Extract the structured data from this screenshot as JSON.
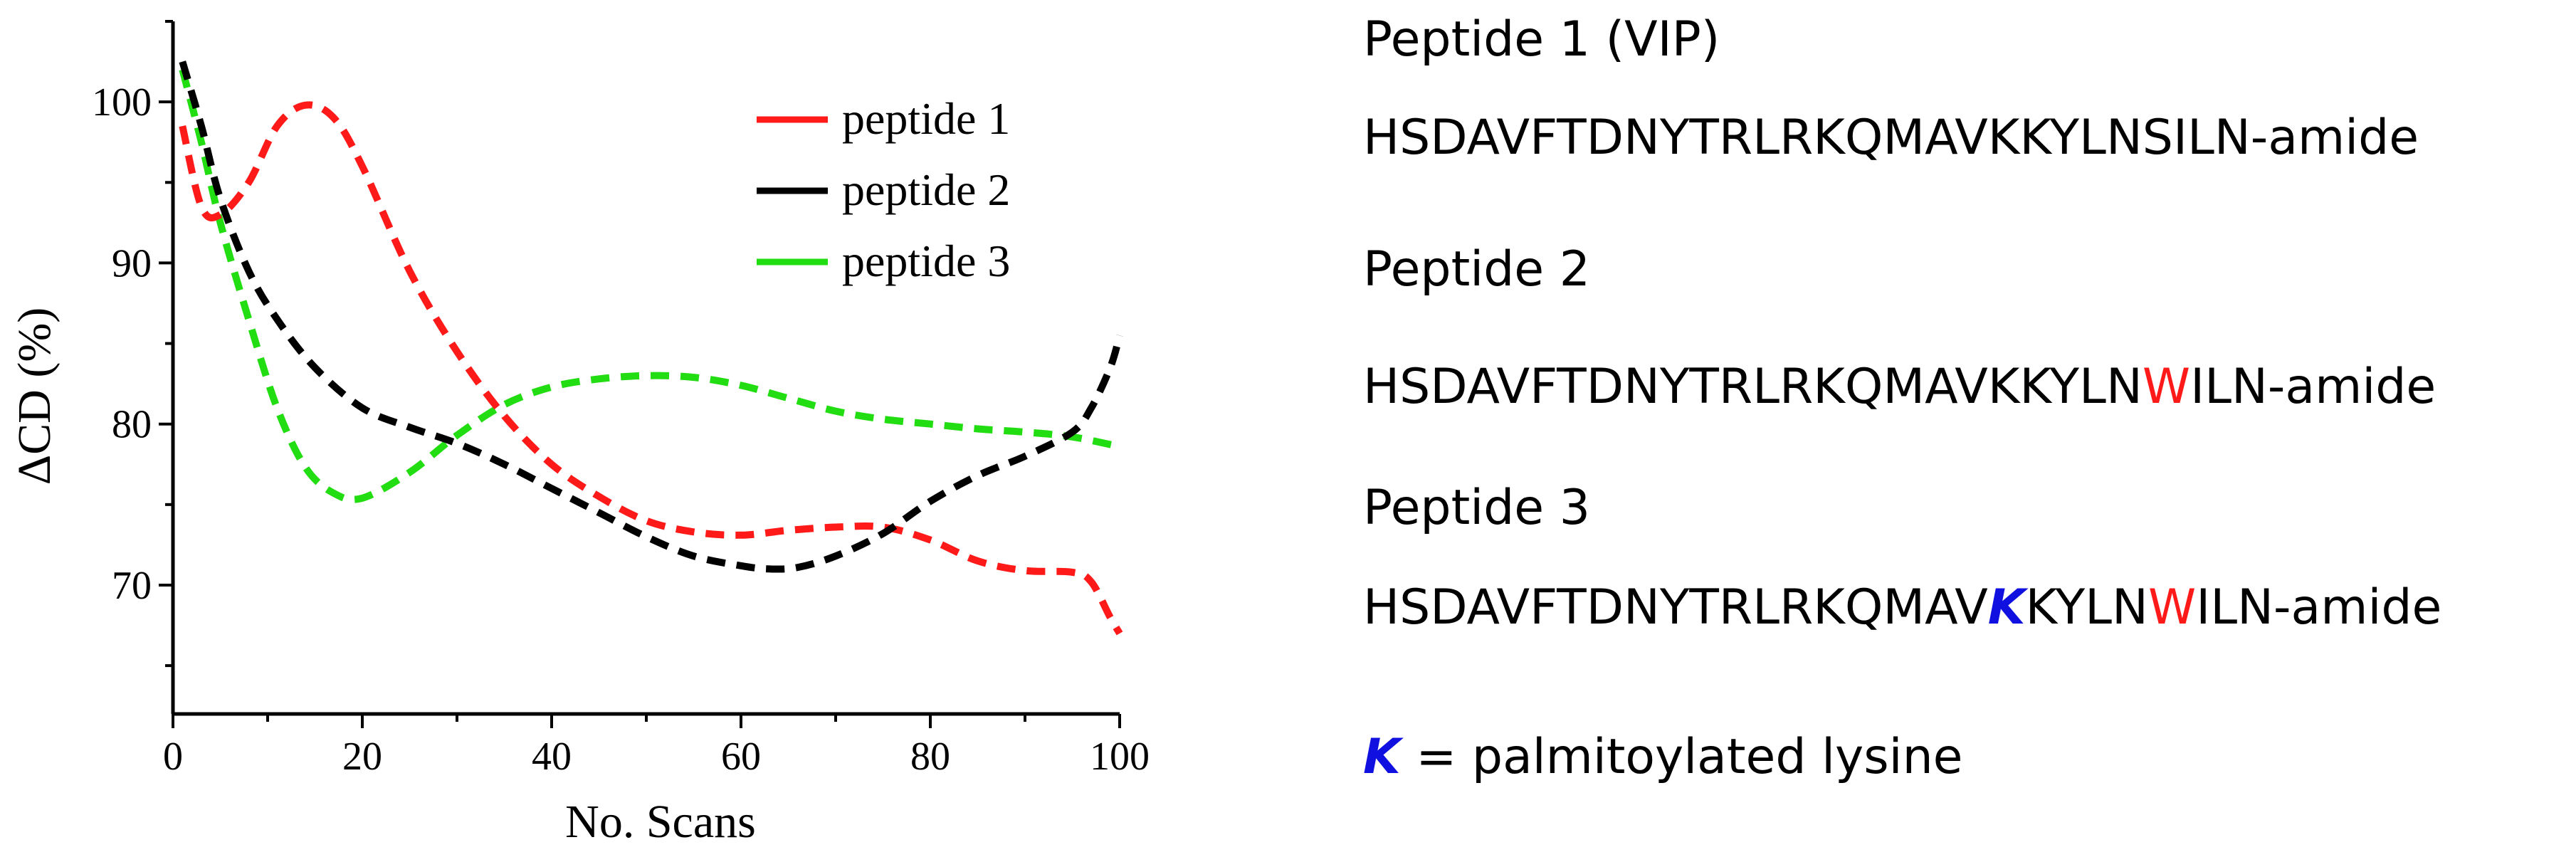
{
  "chart_data": {
    "type": "line",
    "xlabel": "No. Scans",
    "ylabel": "ΔCD (%)",
    "xlim": [
      0,
      100
    ],
    "ylim": [
      62,
      105
    ],
    "xticks": [
      0,
      20,
      40,
      60,
      80,
      100
    ],
    "yticks": [
      70,
      80,
      90,
      100
    ],
    "line_style": "dashed",
    "legend_position": "top-right of plot area",
    "series": [
      {
        "name": "peptide 1",
        "color": "#ff1a1a",
        "x": [
          1,
          3,
          5,
          8,
          11,
          14,
          17,
          20,
          25,
          30,
          35,
          40,
          45,
          50,
          55,
          60,
          65,
          70,
          75,
          80,
          85,
          90,
          95,
          97,
          99,
          100
        ],
        "y": [
          98.5,
          93.5,
          93.0,
          95.0,
          98.5,
          99.8,
          99.0,
          96.0,
          89.5,
          84.5,
          80.5,
          77.5,
          75.5,
          74.0,
          73.3,
          73.1,
          73.4,
          73.6,
          73.6,
          72.8,
          71.5,
          70.9,
          70.8,
          70.2,
          68.0,
          67.0
        ]
      },
      {
        "name": "peptide 2",
        "color": "#000000",
        "x": [
          1,
          3,
          5,
          8,
          11,
          15,
          20,
          25,
          30,
          35,
          40,
          45,
          50,
          55,
          60,
          63,
          66,
          70,
          75,
          80,
          85,
          90,
          95,
          97,
          99,
          100
        ],
        "y": [
          102.5,
          98.5,
          94.0,
          89.5,
          86.5,
          83.5,
          81.0,
          79.8,
          78.8,
          77.5,
          76.0,
          74.5,
          73.0,
          71.8,
          71.2,
          71.0,
          71.1,
          71.8,
          73.2,
          75.2,
          76.8,
          78.0,
          79.5,
          81.0,
          83.5,
          85.5
        ]
      },
      {
        "name": "peptide 3",
        "color": "#22dd11",
        "x": [
          1,
          3,
          5,
          8,
          11,
          14,
          17,
          20,
          25,
          30,
          35,
          40,
          45,
          50,
          55,
          60,
          65,
          70,
          75,
          80,
          85,
          90,
          95,
          100
        ],
        "y": [
          102.0,
          97.5,
          92.5,
          86.5,
          81.0,
          77.3,
          75.7,
          75.4,
          77.0,
          79.3,
          81.2,
          82.3,
          82.8,
          83.0,
          82.9,
          82.4,
          81.6,
          80.8,
          80.3,
          80.0,
          79.7,
          79.5,
          79.2,
          78.6
        ]
      }
    ]
  },
  "sequences": [
    {
      "title": "Peptide 1 (VIP)",
      "parts": [
        {
          "text": "HSDAVFTDNYTRLRKQMAVKKYLNSILN-amide",
          "style": "normal"
        }
      ]
    },
    {
      "title": "Peptide 2",
      "parts": [
        {
          "text": "HSDAVFTDNYTRLRKQMAVKKYLN",
          "style": "normal"
        },
        {
          "text": "W",
          "style": "mutation"
        },
        {
          "text": "ILN-amide",
          "style": "normal"
        }
      ]
    },
    {
      "title": "Peptide 3",
      "parts": [
        {
          "text": "HSDAVFTDNYTRLRKQMAV",
          "style": "normal"
        },
        {
          "text": "K",
          "style": "palmitoyl"
        },
        {
          "text": "KYLN",
          "style": "normal"
        },
        {
          "text": "W",
          "style": "mutation"
        },
        {
          "text": "ILN-amide",
          "style": "normal"
        }
      ]
    }
  ],
  "footnote": {
    "symbol": "K",
    "text": " = palmitoylated lysine"
  },
  "colors": {
    "mutation": "#ff1a1a",
    "palmitoyl": "#1010e0"
  }
}
